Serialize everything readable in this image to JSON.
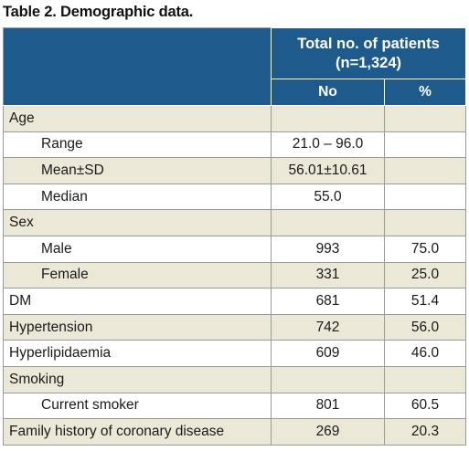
{
  "caption": "Table 2. Demographic data.",
  "header": {
    "group_title_line1": "Total no. of patients",
    "group_title_line2": "(n=1,324)",
    "col_no": "No",
    "col_pct": "%"
  },
  "rows": [
    {
      "label": "Age",
      "no": "",
      "pct": ""
    },
    {
      "label": "Range",
      "no": "21.0 – 96.0",
      "pct": ""
    },
    {
      "label": "Mean±SD",
      "no": "56.01±10.61",
      "pct": ""
    },
    {
      "label": "Median",
      "no": "55.0",
      "pct": ""
    },
    {
      "label": "Sex",
      "no": "",
      "pct": ""
    },
    {
      "label": "Male",
      "no": "993",
      "pct": "75.0"
    },
    {
      "label": "Female",
      "no": "331",
      "pct": "25.0"
    },
    {
      "label": "DM",
      "no": "681",
      "pct": "51.4"
    },
    {
      "label": "Hypertension",
      "no": "742",
      "pct": "56.0"
    },
    {
      "label": "Hyperlipidaemia",
      "no": "609",
      "pct": "46.0"
    },
    {
      "label": "Smoking",
      "no": "",
      "pct": ""
    },
    {
      "label": "Current smoker",
      "no": "801",
      "pct": "60.5"
    },
    {
      "label": "Family history of coronary disease",
      "no": "269",
      "pct": "20.3"
    }
  ]
}
